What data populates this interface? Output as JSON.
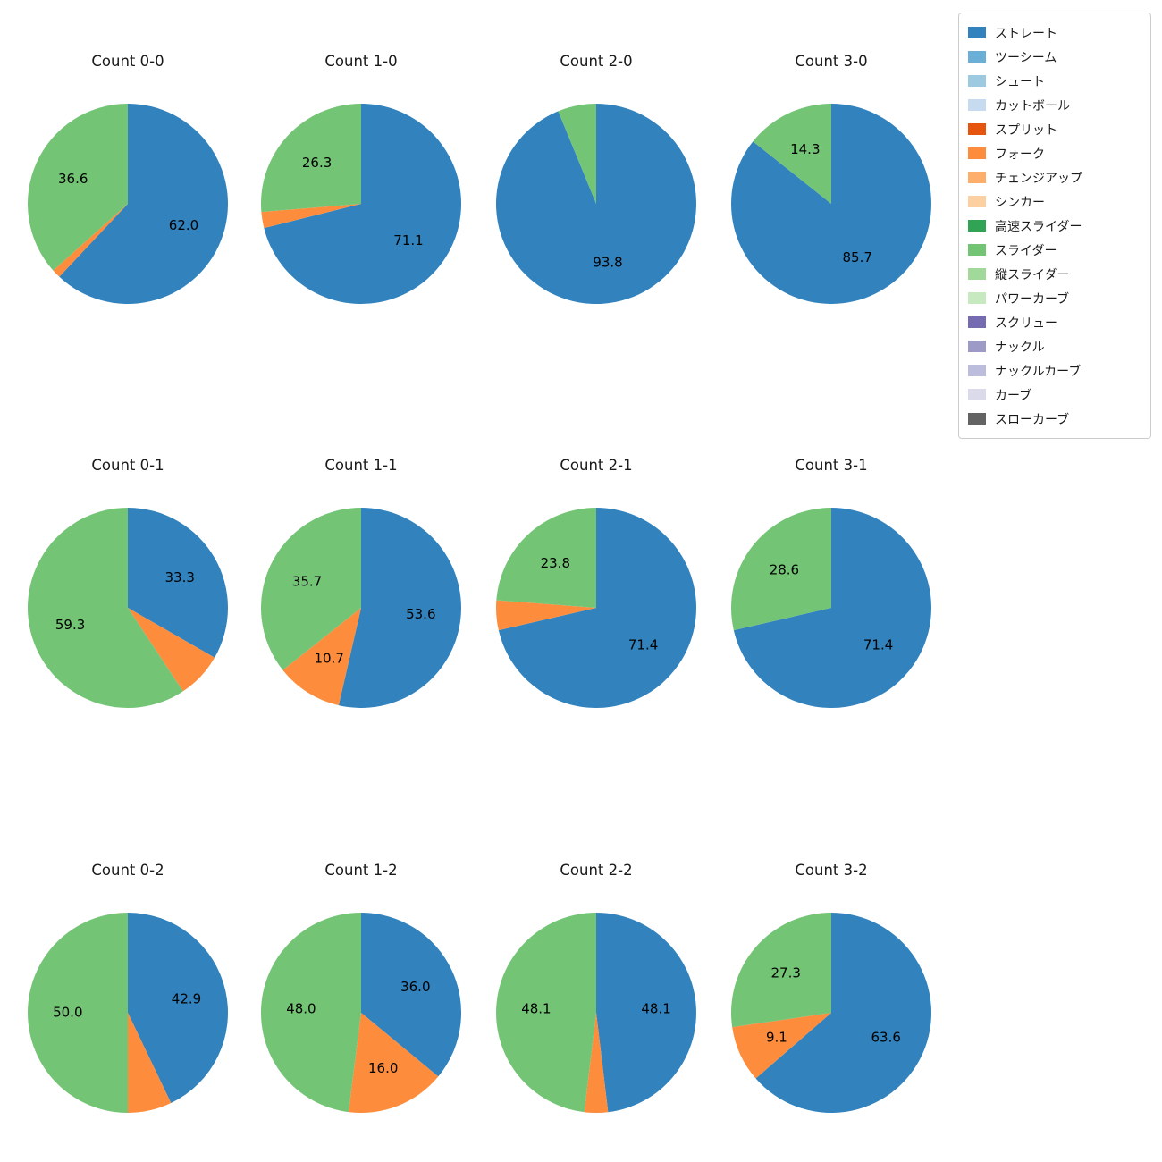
{
  "legend": {
    "items": [
      {
        "label": "ストレート",
        "color": "#3182bd"
      },
      {
        "label": "ツーシーム",
        "color": "#6baed6"
      },
      {
        "label": "シュート",
        "color": "#9ecae1"
      },
      {
        "label": "カットボール",
        "color": "#c6dbef"
      },
      {
        "label": "スプリット",
        "color": "#e6550d"
      },
      {
        "label": "フォーク",
        "color": "#fd8d3c"
      },
      {
        "label": "チェンジアップ",
        "color": "#fdae6b"
      },
      {
        "label": "シンカー",
        "color": "#fdd0a2"
      },
      {
        "label": "高速スライダー",
        "color": "#31a354"
      },
      {
        "label": "スライダー",
        "color": "#74c476"
      },
      {
        "label": "縦スライダー",
        "color": "#a1d99b"
      },
      {
        "label": "パワーカーブ",
        "color": "#c7e9c0"
      },
      {
        "label": "スクリュー",
        "color": "#756bb1"
      },
      {
        "label": "ナックル",
        "color": "#9e9ac8"
      },
      {
        "label": "ナックルカーブ",
        "color": "#bcbddc"
      },
      {
        "label": "カーブ",
        "color": "#dadaeb"
      },
      {
        "label": "スローカーブ",
        "color": "#636363"
      }
    ]
  },
  "chart_data": [
    {
      "type": "pie",
      "title": "Count 0-0",
      "slices": [
        {
          "name": "ストレート",
          "value": 62.0,
          "label": "62.0",
          "color": "#3182bd"
        },
        {
          "name": "フォーク",
          "value": 1.4,
          "label": "",
          "color": "#fd8d3c"
        },
        {
          "name": "スライダー",
          "value": 36.6,
          "label": "36.6",
          "color": "#74c476"
        }
      ]
    },
    {
      "type": "pie",
      "title": "Count 1-0",
      "slices": [
        {
          "name": "ストレート",
          "value": 71.1,
          "label": "71.1",
          "color": "#3182bd"
        },
        {
          "name": "フォーク",
          "value": 2.6,
          "label": "",
          "color": "#fd8d3c"
        },
        {
          "name": "スライダー",
          "value": 26.3,
          "label": "26.3",
          "color": "#74c476"
        }
      ]
    },
    {
      "type": "pie",
      "title": "Count 2-0",
      "slices": [
        {
          "name": "ストレート",
          "value": 93.8,
          "label": "93.8",
          "color": "#3182bd"
        },
        {
          "name": "スライダー",
          "value": 6.2,
          "label": "",
          "color": "#74c476"
        }
      ]
    },
    {
      "type": "pie",
      "title": "Count 3-0",
      "slices": [
        {
          "name": "ストレート",
          "value": 85.7,
          "label": "85.7",
          "color": "#3182bd"
        },
        {
          "name": "スライダー",
          "value": 14.3,
          "label": "14.3",
          "color": "#74c476"
        }
      ]
    },
    {
      "type": "pie",
      "title": "Count 0-1",
      "slices": [
        {
          "name": "ストレート",
          "value": 33.3,
          "label": "33.3",
          "color": "#3182bd"
        },
        {
          "name": "フォーク",
          "value": 7.4,
          "label": "",
          "color": "#fd8d3c"
        },
        {
          "name": "スライダー",
          "value": 59.3,
          "label": "59.3",
          "color": "#74c476"
        }
      ]
    },
    {
      "type": "pie",
      "title": "Count 1-1",
      "slices": [
        {
          "name": "ストレート",
          "value": 53.6,
          "label": "53.6",
          "color": "#3182bd"
        },
        {
          "name": "フォーク",
          "value": 10.7,
          "label": "10.7",
          "color": "#fd8d3c"
        },
        {
          "name": "スライダー",
          "value": 35.7,
          "label": "35.7",
          "color": "#74c476"
        }
      ]
    },
    {
      "type": "pie",
      "title": "Count 2-1",
      "slices": [
        {
          "name": "ストレート",
          "value": 71.4,
          "label": "71.4",
          "color": "#3182bd"
        },
        {
          "name": "フォーク",
          "value": 4.8,
          "label": "",
          "color": "#fd8d3c"
        },
        {
          "name": "スライダー",
          "value": 23.8,
          "label": "23.8",
          "color": "#74c476"
        }
      ]
    },
    {
      "type": "pie",
      "title": "Count 3-1",
      "slices": [
        {
          "name": "ストレート",
          "value": 71.4,
          "label": "71.4",
          "color": "#3182bd"
        },
        {
          "name": "スライダー",
          "value": 28.6,
          "label": "28.6",
          "color": "#74c476"
        }
      ]
    },
    {
      "type": "pie",
      "title": "Count 0-2",
      "slices": [
        {
          "name": "ストレート",
          "value": 42.9,
          "label": "42.9",
          "color": "#3182bd"
        },
        {
          "name": "フォーク",
          "value": 7.1,
          "label": "",
          "color": "#fd8d3c"
        },
        {
          "name": "スライダー",
          "value": 50.0,
          "label": "50.0",
          "color": "#74c476"
        }
      ]
    },
    {
      "type": "pie",
      "title": "Count 1-2",
      "slices": [
        {
          "name": "ストレート",
          "value": 36.0,
          "label": "36.0",
          "color": "#3182bd"
        },
        {
          "name": "フォーク",
          "value": 16.0,
          "label": "16.0",
          "color": "#fd8d3c"
        },
        {
          "name": "スライダー",
          "value": 48.0,
          "label": "48.0",
          "color": "#74c476"
        }
      ]
    },
    {
      "type": "pie",
      "title": "Count 2-2",
      "slices": [
        {
          "name": "ストレート",
          "value": 48.1,
          "label": "48.1",
          "color": "#3182bd"
        },
        {
          "name": "フォーク",
          "value": 3.8,
          "label": "",
          "color": "#fd8d3c"
        },
        {
          "name": "スライダー",
          "value": 48.1,
          "label": "48.1",
          "color": "#74c476"
        }
      ]
    },
    {
      "type": "pie",
      "title": "Count 3-2",
      "slices": [
        {
          "name": "ストレート",
          "value": 63.6,
          "label": "63.6",
          "color": "#3182bd"
        },
        {
          "name": "フォーク",
          "value": 9.1,
          "label": "9.1",
          "color": "#fd8d3c"
        },
        {
          "name": "スライダー",
          "value": 27.3,
          "label": "27.3",
          "color": "#74c476"
        }
      ]
    }
  ]
}
